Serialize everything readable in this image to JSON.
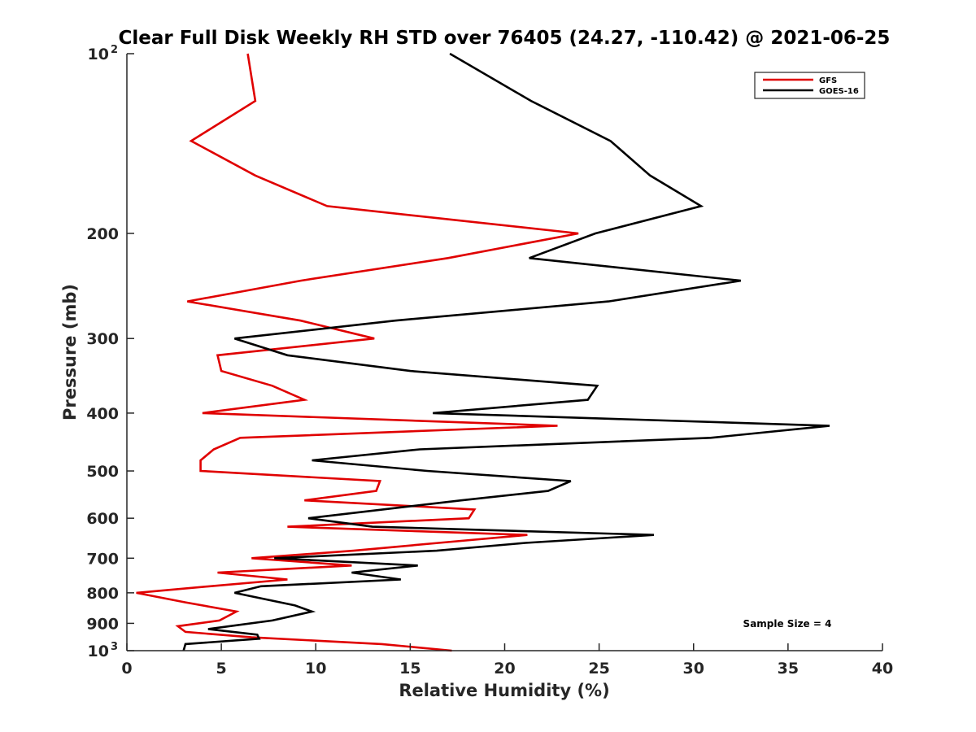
{
  "chart_data": {
    "type": "line",
    "title": "Clear Full Disk Weekly RH STD over 76405 (24.27, -110.42) @ 2021-06-25",
    "xlabel": "Relative Humidity (%)",
    "ylabel": "Pressure (mb)",
    "xlim": [
      0,
      40
    ],
    "ylim": [
      100,
      1000
    ],
    "yscale": "log",
    "y_reversed": true,
    "grid": false,
    "x_ticks": [
      0,
      5,
      10,
      15,
      20,
      25,
      30,
      35,
      40
    ],
    "x_tick_labels": [
      "0",
      "5",
      "10",
      "15",
      "20",
      "25",
      "30",
      "35",
      "40"
    ],
    "y_ticks": [
      100,
      200,
      300,
      400,
      500,
      600,
      700,
      800,
      900,
      1000
    ],
    "y_tick_labels": [
      {
        "base": "10",
        "exp": "2"
      },
      {
        "base": "200",
        "exp": ""
      },
      {
        "base": "300",
        "exp": ""
      },
      {
        "base": "400",
        "exp": ""
      },
      {
        "base": "500",
        "exp": ""
      },
      {
        "base": "600",
        "exp": ""
      },
      {
        "base": "700",
        "exp": ""
      },
      {
        "base": "800",
        "exp": ""
      },
      {
        "base": "900",
        "exp": ""
      },
      {
        "base": "10",
        "exp": "3"
      }
    ],
    "legend_position": "top-right",
    "annotation": "Sample Size = 4",
    "series": [
      {
        "name": "GFS",
        "color": "#e00000",
        "points": [
          [
            6.4,
            100
          ],
          [
            6.8,
            120
          ],
          [
            3.4,
            140
          ],
          [
            6.8,
            160
          ],
          [
            10.6,
            180
          ],
          [
            23.9,
            200
          ],
          [
            17.0,
            220
          ],
          [
            9.2,
            240
          ],
          [
            3.2,
            260
          ],
          [
            9.2,
            280
          ],
          [
            13.1,
            300
          ],
          [
            4.8,
            320
          ],
          [
            5.0,
            340
          ],
          [
            7.7,
            360
          ],
          [
            9.4,
            380
          ],
          [
            4.0,
            400
          ],
          [
            22.8,
            420
          ],
          [
            6.0,
            440
          ],
          [
            4.6,
            460
          ],
          [
            3.9,
            480
          ],
          [
            3.9,
            500
          ],
          [
            13.4,
            520
          ],
          [
            13.2,
            540
          ],
          [
            9.4,
            560
          ],
          [
            18.4,
            580
          ],
          [
            18.1,
            600
          ],
          [
            8.5,
            620
          ],
          [
            21.2,
            640
          ],
          [
            16.5,
            660
          ],
          [
            12.0,
            680
          ],
          [
            6.6,
            700
          ],
          [
            11.9,
            720
          ],
          [
            4.8,
            740
          ],
          [
            8.5,
            760
          ],
          [
            4.4,
            780
          ],
          [
            0.5,
            800
          ],
          [
            3.1,
            830
          ],
          [
            5.8,
            860
          ],
          [
            4.9,
            890
          ],
          [
            2.7,
            910
          ],
          [
            3.1,
            930
          ],
          [
            6.6,
            950
          ],
          [
            13.5,
            975
          ],
          [
            17.2,
            1000
          ]
        ]
      },
      {
        "name": "GOES-16",
        "color": "#000000",
        "points": [
          [
            17.1,
            100
          ],
          [
            21.4,
            120
          ],
          [
            25.6,
            140
          ],
          [
            27.7,
            160
          ],
          [
            30.4,
            180
          ],
          [
            24.8,
            200
          ],
          [
            21.3,
            220
          ],
          [
            32.5,
            240
          ],
          [
            25.5,
            260
          ],
          [
            14.2,
            280
          ],
          [
            5.7,
            300
          ],
          [
            8.5,
            320
          ],
          [
            15.0,
            340
          ],
          [
            24.9,
            360
          ],
          [
            24.4,
            380
          ],
          [
            16.2,
            400
          ],
          [
            37.2,
            420
          ],
          [
            30.9,
            440
          ],
          [
            15.5,
            460
          ],
          [
            9.8,
            480
          ],
          [
            15.9,
            500
          ],
          [
            23.5,
            520
          ],
          [
            22.3,
            540
          ],
          [
            17.7,
            560
          ],
          [
            9.6,
            600
          ],
          [
            13.0,
            620
          ],
          [
            27.9,
            640
          ],
          [
            21.1,
            660
          ],
          [
            16.4,
            680
          ],
          [
            7.8,
            700
          ],
          [
            15.4,
            720
          ],
          [
            11.9,
            740
          ],
          [
            14.5,
            760
          ],
          [
            7.1,
            780
          ],
          [
            5.7,
            800
          ],
          [
            8.9,
            840
          ],
          [
            9.8,
            860
          ],
          [
            7.7,
            890
          ],
          [
            4.3,
            920
          ],
          [
            6.9,
            940
          ],
          [
            7.0,
            955
          ],
          [
            3.1,
            975
          ],
          [
            3.0,
            1000
          ]
        ]
      }
    ]
  }
}
